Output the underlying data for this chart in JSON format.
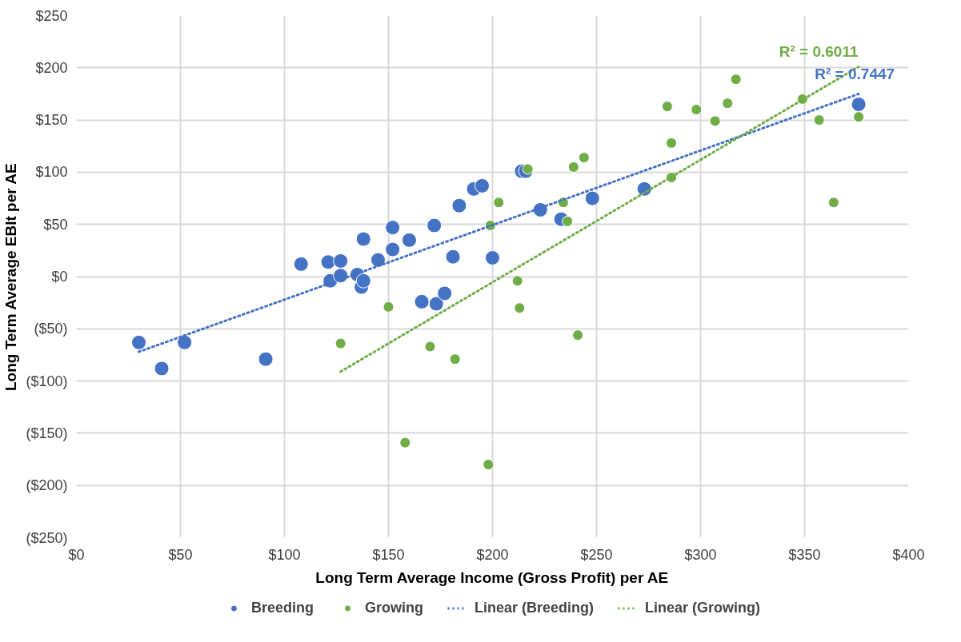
{
  "chart_data": {
    "type": "scatter",
    "xlabel": "Long Term Average Income (Gross Profit) per AE",
    "ylabel": "Long Term Average EBIt per AE",
    "xlim": [
      0,
      400
    ],
    "ylim": [
      -250,
      250
    ],
    "xticks": [
      {
        "value": 0,
        "label": "$0"
      },
      {
        "value": 50,
        "label": "$50"
      },
      {
        "value": 100,
        "label": "$100"
      },
      {
        "value": 150,
        "label": "$150"
      },
      {
        "value": 200,
        "label": "$200"
      },
      {
        "value": 250,
        "label": "$250"
      },
      {
        "value": 300,
        "label": "$300"
      },
      {
        "value": 350,
        "label": "$350"
      },
      {
        "value": 400,
        "label": "$400"
      }
    ],
    "yticks": [
      {
        "value": -250,
        "label": "($250)"
      },
      {
        "value": -200,
        "label": "($200)"
      },
      {
        "value": -150,
        "label": "($150)"
      },
      {
        "value": -100,
        "label": "($100)"
      },
      {
        "value": -50,
        "label": "($50)"
      },
      {
        "value": 0,
        "label": "$0"
      },
      {
        "value": 50,
        "label": "$50"
      },
      {
        "value": 100,
        "label": "$100"
      },
      {
        "value": 150,
        "label": "$150"
      },
      {
        "value": 200,
        "label": "$200"
      },
      {
        "value": 250,
        "label": "$250"
      }
    ],
    "grid": true,
    "legend": "bottom",
    "series": [
      {
        "name": "Breeding",
        "marker": "circle",
        "color": "#4472c4",
        "x": [
          30,
          41,
          52,
          91,
          108,
          121,
          122,
          127,
          127,
          135,
          137,
          138,
          138,
          145,
          152,
          152,
          160,
          166,
          172,
          173,
          177,
          181,
          184,
          191,
          195,
          200,
          214,
          216,
          223,
          233,
          248,
          273,
          376
        ],
        "values": [
          -63,
          -88,
          -63,
          -79,
          12,
          14,
          -4,
          15,
          1,
          2,
          -10,
          -4,
          36,
          16,
          47,
          26,
          35,
          -24,
          49,
          -26,
          -16,
          19,
          68,
          84,
          87,
          18,
          101,
          101,
          64,
          55,
          75,
          84,
          165
        ]
      },
      {
        "name": "Growing",
        "marker": "circle",
        "color": "#70ad47",
        "x": [
          127,
          150,
          158,
          170,
          182,
          198,
          199,
          203,
          212,
          213,
          217,
          234,
          236,
          239,
          241,
          244,
          284,
          286,
          286,
          298,
          307,
          313,
          317,
          349,
          357,
          364,
          376
        ],
        "values": [
          -64,
          -29,
          -159,
          -67,
          -79,
          -180,
          49,
          71,
          -4,
          -30,
          103,
          71,
          53,
          105,
          -56,
          114,
          163,
          128,
          95,
          160,
          149,
          166,
          189,
          170,
          150,
          71,
          153
        ]
      },
      {
        "name": "Linear (Breeding)",
        "type": "line",
        "line_style": "dotted",
        "color": "#4472c4",
        "x": [
          30,
          376
        ],
        "values": [
          -72,
          175
        ]
      },
      {
        "name": "Linear (Growing)",
        "type": "line",
        "line_style": "dotted",
        "color": "#70ad47",
        "x": [
          127,
          376
        ],
        "values": [
          -91,
          201
        ]
      }
    ],
    "annotations": [
      "R² = 0.7447",
      "R² = 0.6011"
    ]
  }
}
